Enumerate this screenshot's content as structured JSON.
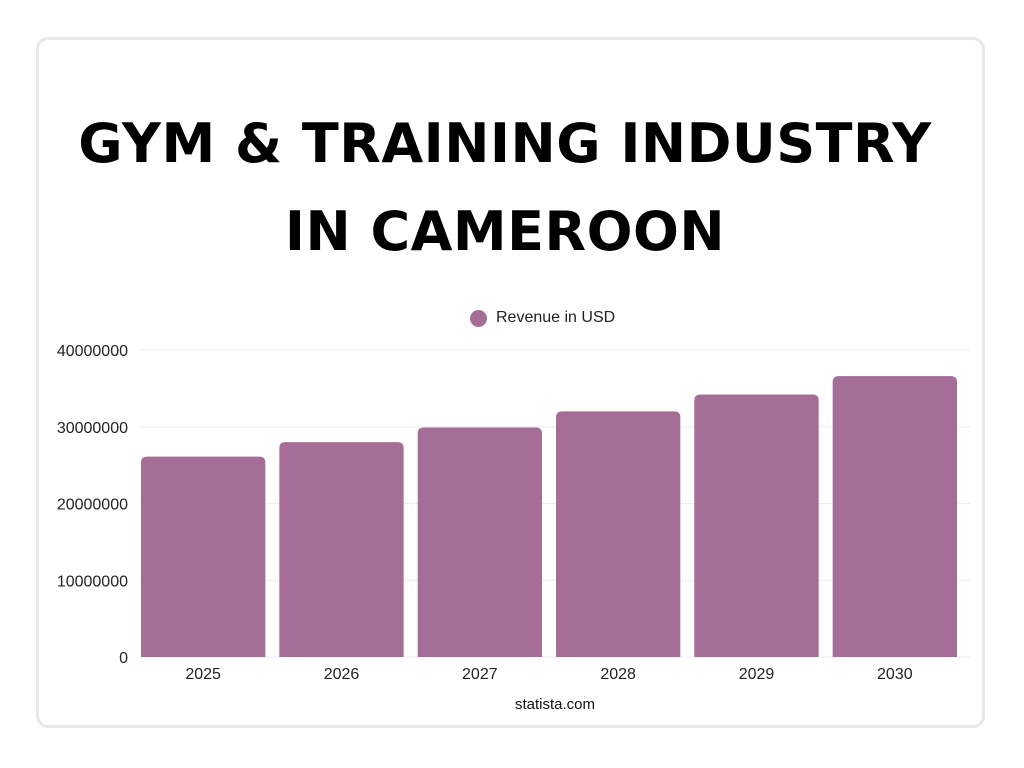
{
  "title_lines": [
    "GYM & TRAINING INDUSTRY",
    "IN CAMEROON"
  ],
  "source": "statista.com",
  "colors": {
    "bar": "#a56e97",
    "grid": "#ececec",
    "border": "#e8e8e8"
  },
  "chart_data": {
    "type": "bar",
    "title": "GYM & TRAINING INDUSTRY IN CAMEROON",
    "categories": [
      "2025",
      "2026",
      "2027",
      "2028",
      "2029",
      "2030"
    ],
    "series": [
      {
        "name": "Revenue in USD",
        "values": [
          26100000,
          28000000,
          29900000,
          32000000,
          34200000,
          36600000
        ]
      }
    ],
    "ylim": [
      0,
      40000000
    ],
    "yticks": [
      "0",
      "10000000",
      "20000000",
      "30000000",
      "40000000"
    ],
    "grid": true,
    "legend": "top-center"
  }
}
